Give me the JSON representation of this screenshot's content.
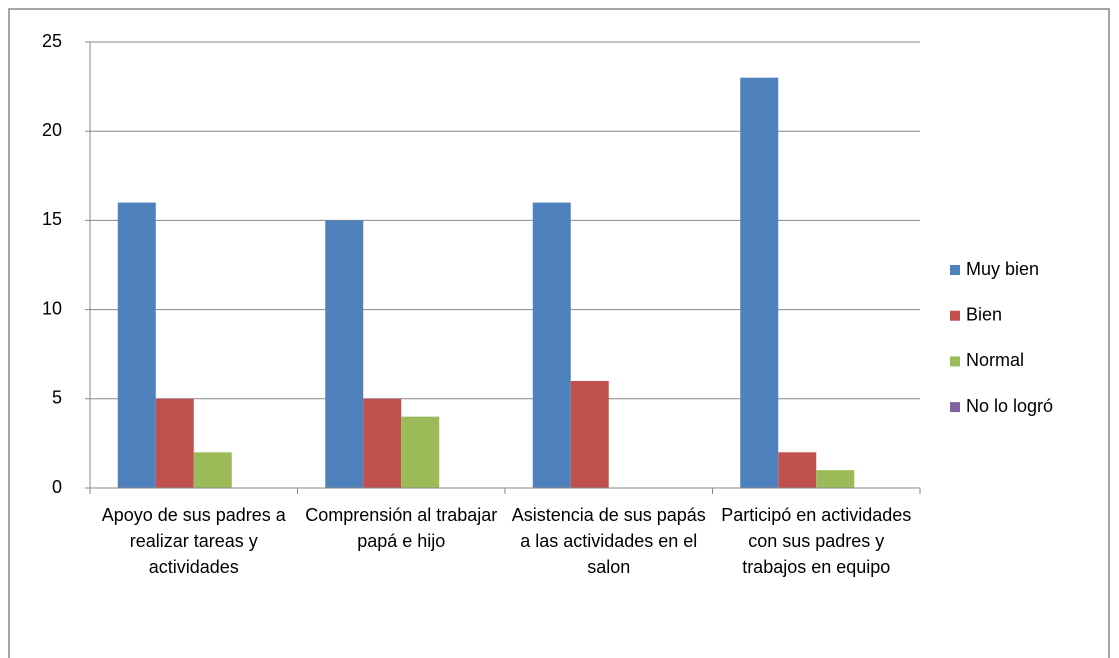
{
  "chart_data": {
    "type": "bar",
    "categories": [
      "Apoyo  de sus padres a realizar tareas y actividades",
      "Comprensión al trabajar papá e hijo",
      "Asistencia de sus papás a las actividades en el salon",
      "Participó en actividades con sus padres y trabajos en equipo"
    ],
    "series": [
      {
        "name": "Muy bien",
        "color": "#4f81bd",
        "values": [
          16,
          15,
          16,
          23
        ]
      },
      {
        "name": "Bien",
        "color": "#c0504d",
        "values": [
          5,
          5,
          6,
          2
        ]
      },
      {
        "name": "Normal",
        "color": "#9bbb59",
        "values": [
          2,
          4,
          0,
          1
        ]
      },
      {
        "name": "No lo logró",
        "color": "#8064a2",
        "values": [
          0,
          0,
          0,
          0
        ]
      }
    ],
    "ylim": [
      0,
      25
    ],
    "yticks": [
      0,
      5,
      10,
      15,
      20,
      25
    ],
    "grid": true,
    "legend": "right"
  }
}
